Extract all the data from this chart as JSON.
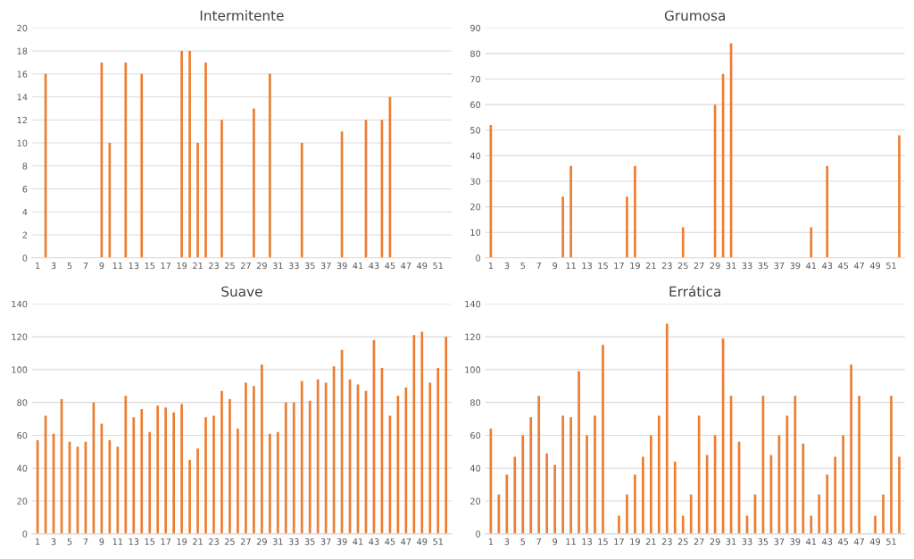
{
  "chart_data": [
    {
      "type": "bar",
      "title": "Intermitente",
      "categories": [
        "1",
        null,
        "3",
        null,
        "5",
        null,
        "7",
        null,
        "9",
        null,
        "11",
        null,
        "13",
        null,
        "15",
        null,
        "17",
        null,
        "19",
        null,
        "21",
        null,
        "23",
        null,
        "25",
        null,
        "27",
        null,
        "29",
        null,
        "31",
        null,
        "33",
        null,
        "35",
        null,
        "37",
        null,
        "39",
        null,
        "41",
        null,
        "43",
        null,
        "45",
        null,
        "47",
        null,
        "49",
        null,
        "51",
        null
      ],
      "values": [
        0,
        16,
        0,
        0,
        0,
        0,
        0,
        0,
        17,
        10,
        0,
        17,
        0,
        16,
        0,
        0,
        0,
        0,
        18,
        18,
        10,
        17,
        0,
        12,
        0,
        0,
        0,
        13,
        0,
        16,
        0,
        0,
        0,
        10,
        0,
        0,
        0,
        0,
        11,
        0,
        0,
        12,
        0,
        12,
        14,
        0,
        0,
        0,
        0,
        0,
        0,
        0
      ],
      "color": "#ed7d31",
      "ylim": [
        0,
        20
      ],
      "yticks": [
        0,
        2,
        4,
        6,
        8,
        10,
        12,
        14,
        16,
        18,
        20
      ],
      "grid": "y"
    },
    {
      "type": "bar",
      "title": "Grumosa",
      "categories": [
        "1",
        null,
        "3",
        null,
        "5",
        null,
        "7",
        null,
        "9",
        null,
        "11",
        null,
        "13",
        null,
        "15",
        null,
        "17",
        null,
        "19",
        null,
        "21",
        null,
        "23",
        null,
        "25",
        null,
        "27",
        null,
        "29",
        null,
        "31",
        null,
        "33",
        null,
        "35",
        null,
        "37",
        null,
        "39",
        null,
        "41",
        null,
        "43",
        null,
        "45",
        null,
        "47",
        null,
        "49",
        null,
        "51",
        null
      ],
      "values": [
        52,
        0,
        0,
        0,
        0,
        0,
        0,
        0,
        0,
        24,
        36,
        0,
        0,
        0,
        0,
        0,
        0,
        24,
        36,
        0,
        0,
        0,
        0,
        0,
        12,
        0,
        0,
        0,
        60,
        72,
        84,
        0,
        0,
        0,
        0,
        0,
        0,
        0,
        0,
        0,
        12,
        0,
        36,
        0,
        0,
        0,
        0,
        0,
        0,
        0,
        0,
        48
      ],
      "color": "#ed7d31",
      "ylim": [
        0,
        90
      ],
      "yticks": [
        0,
        10,
        20,
        30,
        40,
        50,
        60,
        70,
        80,
        90
      ],
      "grid": "y"
    },
    {
      "type": "bar",
      "title": "Suave",
      "categories": [
        "1",
        null,
        "3",
        null,
        "5",
        null,
        "7",
        null,
        "9",
        null,
        "11",
        null,
        "13",
        null,
        "15",
        null,
        "17",
        null,
        "19",
        null,
        "21",
        null,
        "23",
        null,
        "25",
        null,
        "27",
        null,
        "29",
        null,
        "31",
        null,
        "33",
        null,
        "35",
        null,
        "37",
        null,
        "39",
        null,
        "41",
        null,
        "43",
        null,
        "45",
        null,
        "47",
        null,
        "49",
        null,
        "51",
        null
      ],
      "values": [
        57,
        72,
        61,
        82,
        56,
        53,
        56,
        80,
        67,
        57,
        53,
        84,
        71,
        76,
        62,
        78,
        77,
        74,
        79,
        45,
        52,
        71,
        72,
        87,
        82,
        64,
        92,
        90,
        103,
        61,
        62,
        80,
        80,
        93,
        81,
        94,
        92,
        102,
        112,
        94,
        91,
        87,
        118,
        101,
        72,
        84,
        89,
        121,
        123,
        92,
        101,
        120
      ],
      "color": "#ed7d31",
      "ylim": [
        0,
        140
      ],
      "yticks": [
        0,
        20,
        40,
        60,
        80,
        100,
        120,
        140
      ],
      "grid": "y"
    },
    {
      "type": "bar",
      "title": "Errática",
      "categories": [
        "1",
        null,
        "3",
        null,
        "5",
        null,
        "7",
        null,
        "9",
        null,
        "11",
        null,
        "13",
        null,
        "15",
        null,
        "17",
        null,
        "19",
        null,
        "21",
        null,
        "23",
        null,
        "25",
        null,
        "27",
        null,
        "29",
        null,
        "31",
        null,
        "33",
        null,
        "35",
        null,
        "37",
        null,
        "39",
        null,
        "41",
        null,
        "43",
        null,
        "45",
        null,
        "47",
        null,
        "49",
        null,
        "51",
        null
      ],
      "values": [
        64,
        24,
        36,
        47,
        60,
        71,
        84,
        49,
        42,
        72,
        71,
        99,
        60,
        72,
        115,
        0,
        11,
        24,
        36,
        47,
        60,
        72,
        128,
        44,
        11,
        24,
        72,
        48,
        60,
        119,
        84,
        56,
        11,
        24,
        84,
        48,
        60,
        72,
        84,
        55,
        11,
        24,
        36,
        47,
        60,
        103,
        84,
        0,
        11,
        24,
        84,
        47
      ],
      "color": "#ed7d31",
      "ylim": [
        0,
        140
      ],
      "yticks": [
        0,
        20,
        40,
        60,
        80,
        100,
        120,
        140
      ],
      "grid": "y"
    }
  ]
}
